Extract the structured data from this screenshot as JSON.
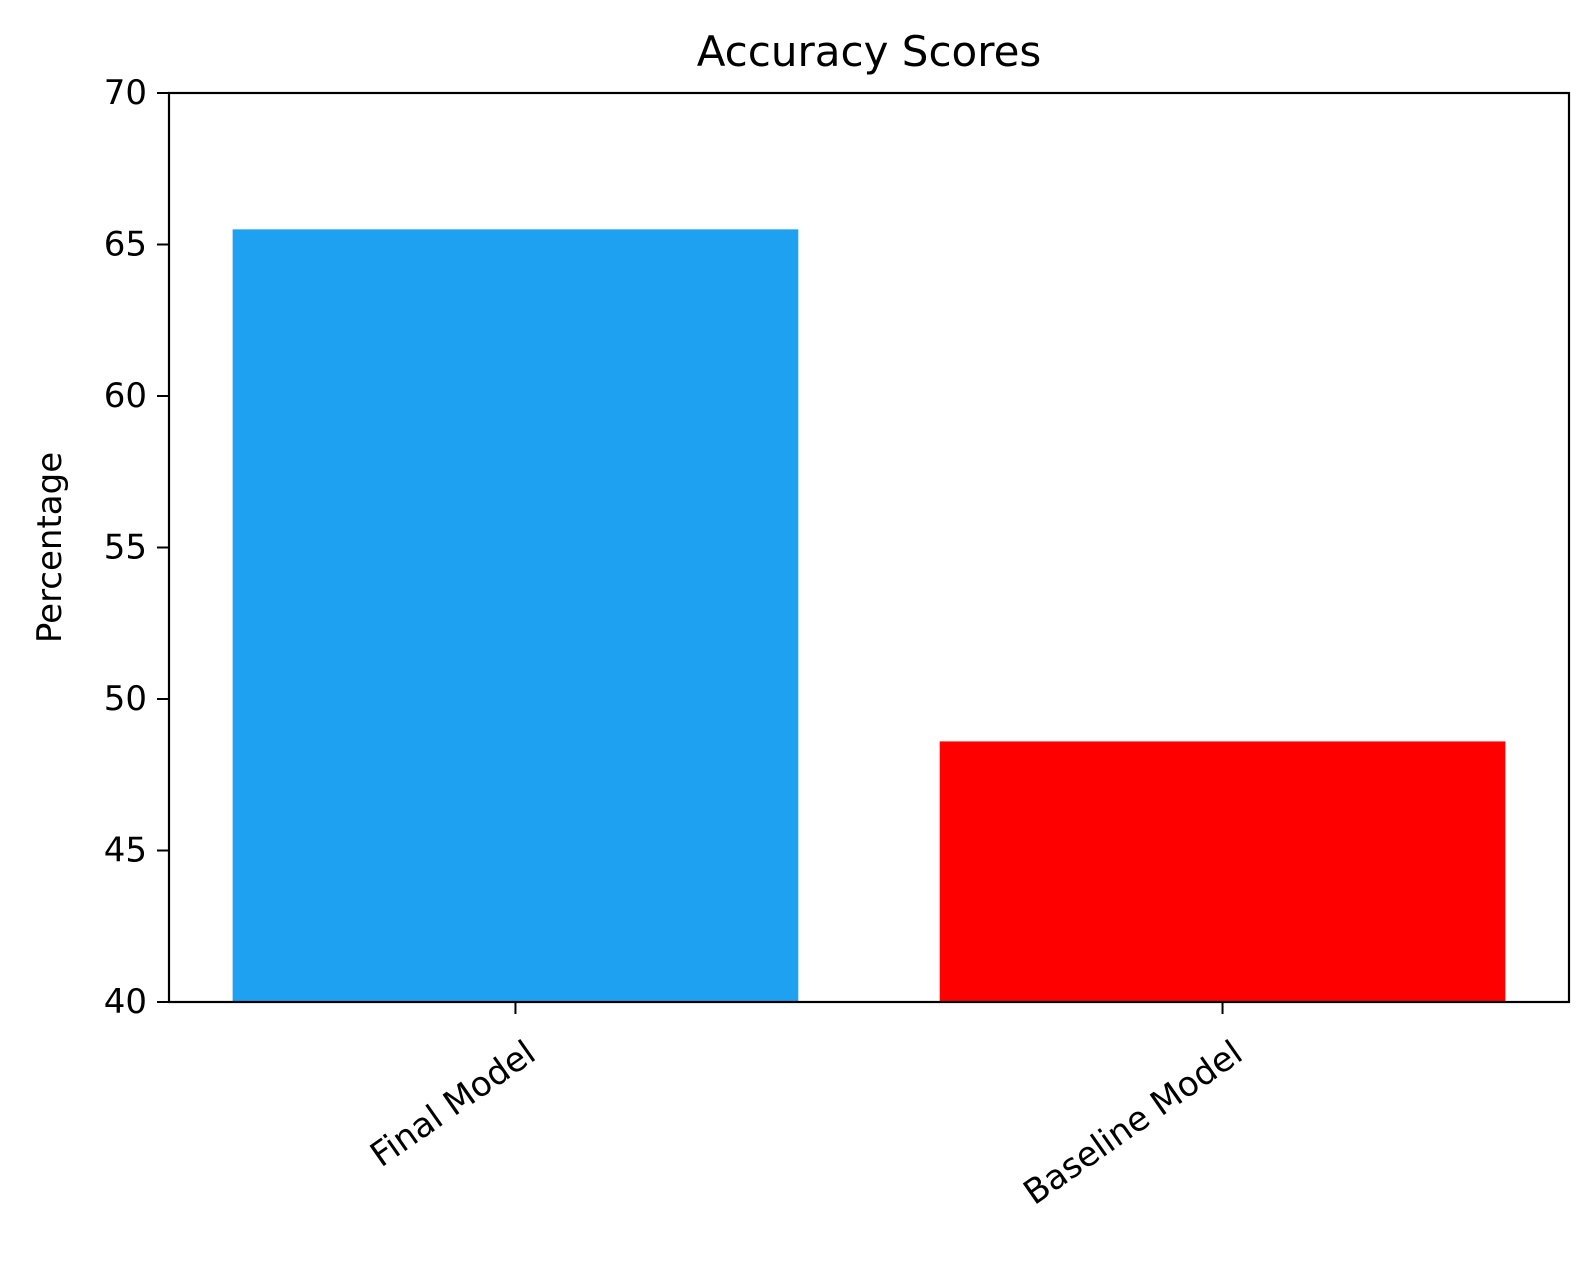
{
  "chart_data": {
    "type": "bar",
    "title": "Accuracy Scores",
    "xlabel": "",
    "ylabel": "Percentage",
    "categories": [
      "Final Model",
      "Baseline Model"
    ],
    "values": [
      65.5,
      48.6
    ],
    "bar_colors": [
      "#1fa1f1",
      "#ff0000"
    ],
    "ylim": [
      40,
      70
    ],
    "yticks": [
      40,
      45,
      50,
      55,
      60,
      65,
      70
    ],
    "ytick_labels": [
      "40",
      "45",
      "50",
      "55",
      "60",
      "65",
      "70"
    ],
    "grid": false,
    "legend": "none",
    "xtick_rotation_deg": 35
  }
}
